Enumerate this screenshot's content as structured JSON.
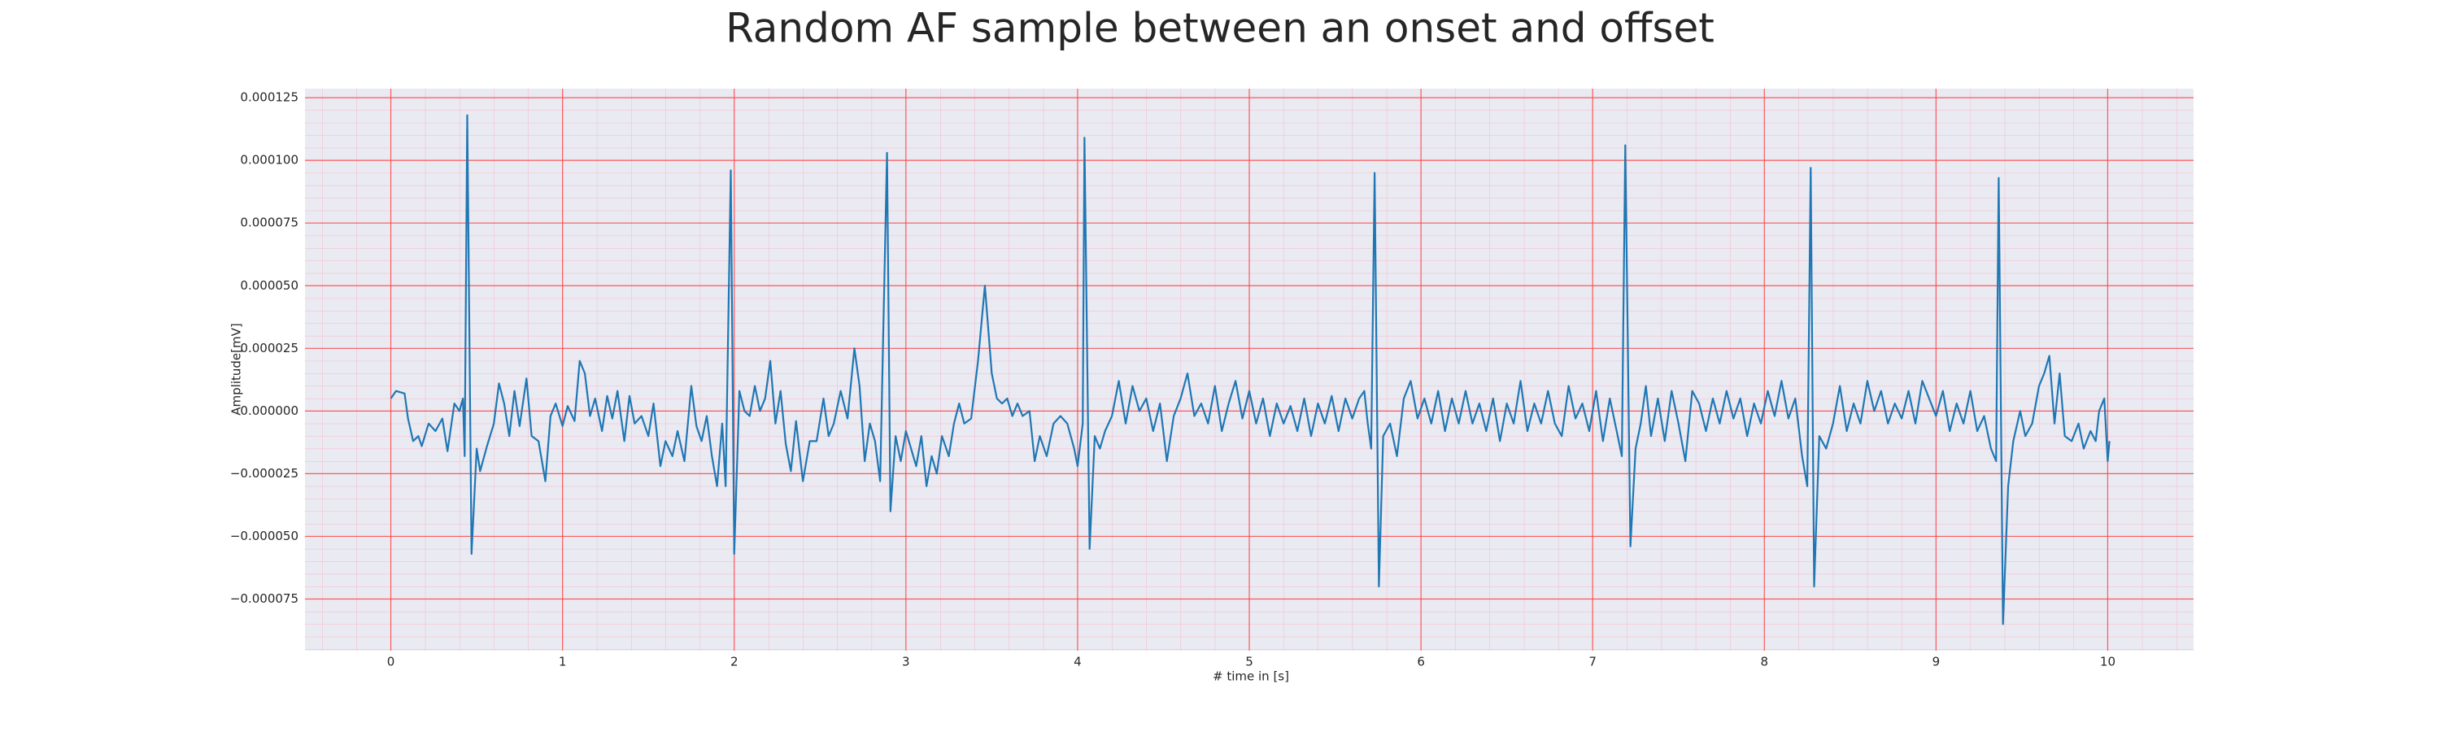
{
  "chart_data": {
    "type": "line",
    "title": "Random AF sample between an onset and offset",
    "xlabel": "# time in [s]",
    "ylabel": "Amplitude[mV]",
    "color": "#1f77b4",
    "grid": true,
    "minor_grid": true,
    "xlim": [
      -0.5,
      10.5
    ],
    "ylim": [
      -9.56e-05,
      0.0001286
    ],
    "xticks": [
      0,
      1,
      2,
      3,
      4,
      5,
      6,
      7,
      8,
      9,
      10
    ],
    "yticks": [
      {
        "value": -7.5e-05,
        "label": "−0.000075"
      },
      {
        "value": -5e-05,
        "label": "−0.000050"
      },
      {
        "value": -2.5e-05,
        "label": "−0.000025"
      },
      {
        "value": 0,
        "label": "0.000000"
      },
      {
        "value": 2.5e-05,
        "label": "0.000025"
      },
      {
        "value": 5e-05,
        "label": "0.000050"
      },
      {
        "value": 7.5e-05,
        "label": "0.000075"
      },
      {
        "value": 0.0001,
        "label": "0.000100"
      },
      {
        "value": 0.000125,
        "label": "0.000125"
      }
    ],
    "x": [
      0.0,
      0.03,
      0.08,
      0.1,
      0.13,
      0.16,
      0.18,
      0.22,
      0.26,
      0.3,
      0.33,
      0.37,
      0.4,
      0.42,
      0.43,
      0.445,
      0.47,
      0.5,
      0.52,
      0.56,
      0.6,
      0.63,
      0.66,
      0.69,
      0.72,
      0.75,
      0.79,
      0.82,
      0.86,
      0.9,
      0.93,
      0.96,
      1.0,
      1.03,
      1.07,
      1.1,
      1.13,
      1.16,
      1.19,
      1.23,
      1.26,
      1.29,
      1.32,
      1.36,
      1.39,
      1.42,
      1.46,
      1.5,
      1.53,
      1.57,
      1.6,
      1.64,
      1.67,
      1.71,
      1.75,
      1.78,
      1.81,
      1.84,
      1.87,
      1.9,
      1.93,
      1.95,
      1.98,
      2.0,
      2.03,
      2.06,
      2.09,
      2.12,
      2.15,
      2.18,
      2.21,
      2.24,
      2.27,
      2.3,
      2.33,
      2.36,
      2.4,
      2.44,
      2.48,
      2.52,
      2.55,
      2.58,
      2.62,
      2.66,
      2.7,
      2.73,
      2.76,
      2.79,
      2.82,
      2.85,
      2.89,
      2.91,
      2.94,
      2.97,
      3.0,
      3.03,
      3.06,
      3.09,
      3.12,
      3.15,
      3.18,
      3.21,
      3.25,
      3.28,
      3.31,
      3.34,
      3.38,
      3.42,
      3.46,
      3.5,
      3.53,
      3.56,
      3.59,
      3.62,
      3.65,
      3.68,
      3.72,
      3.75,
      3.78,
      3.82,
      3.86,
      3.9,
      3.94,
      3.98,
      4.0,
      4.03,
      4.04,
      4.07,
      4.1,
      4.13,
      4.16,
      4.2,
      4.24,
      4.28,
      4.32,
      4.36,
      4.4,
      4.44,
      4.48,
      4.52,
      4.56,
      4.6,
      4.64,
      4.68,
      4.72,
      4.76,
      4.8,
      4.84,
      4.88,
      4.92,
      4.96,
      5.0,
      5.04,
      5.08,
      5.12,
      5.16,
      5.2,
      5.24,
      5.28,
      5.32,
      5.36,
      5.4,
      5.44,
      5.48,
      5.52,
      5.56,
      5.6,
      5.64,
      5.67,
      5.69,
      5.71,
      5.73,
      5.755,
      5.78,
      5.82,
      5.86,
      5.9,
      5.94,
      5.98,
      6.02,
      6.06,
      6.1,
      6.14,
      6.18,
      6.22,
      6.26,
      6.3,
      6.34,
      6.38,
      6.42,
      6.46,
      6.5,
      6.54,
      6.58,
      6.62,
      6.66,
      6.7,
      6.74,
      6.78,
      6.82,
      6.86,
      6.9,
      6.94,
      6.98,
      7.02,
      7.06,
      7.1,
      7.14,
      7.17,
      7.19,
      7.22,
      7.25,
      7.28,
      7.31,
      7.34,
      7.38,
      7.42,
      7.46,
      7.5,
      7.54,
      7.58,
      7.62,
      7.66,
      7.7,
      7.74,
      7.78,
      7.82,
      7.86,
      7.9,
      7.94,
      7.98,
      8.02,
      8.06,
      8.1,
      8.14,
      8.18,
      8.22,
      8.25,
      8.27,
      8.29,
      8.32,
      8.36,
      8.4,
      8.44,
      8.48,
      8.52,
      8.56,
      8.6,
      8.64,
      8.68,
      8.72,
      8.76,
      8.8,
      8.84,
      8.88,
      8.92,
      8.96,
      9.0,
      9.04,
      9.08,
      9.12,
      9.16,
      9.2,
      9.24,
      9.28,
      9.32,
      9.35,
      9.365,
      9.39,
      9.42,
      9.45,
      9.49,
      9.52,
      9.56,
      9.6,
      9.63,
      9.66,
      9.69,
      9.72,
      9.75,
      9.79,
      9.83,
      9.86,
      9.9,
      9.93,
      9.95,
      9.98,
      10.0,
      10.01
    ],
    "values": [
      5e-06,
      8e-06,
      7e-06,
      -3e-06,
      -1.2e-05,
      -1e-05,
      -1.4e-05,
      -5e-06,
      -8e-06,
      -3e-06,
      -1.6e-05,
      3e-06,
      0,
      5e-06,
      -1.8e-05,
      0.000118,
      -5.7e-05,
      -1.5e-05,
      -2.4e-05,
      -1.4e-05,
      -5e-06,
      1.1e-05,
      3e-06,
      -1e-05,
      8e-06,
      -6e-06,
      1.3e-05,
      -1e-05,
      -1.2e-05,
      -2.8e-05,
      -2e-06,
      3e-06,
      -6e-06,
      2e-06,
      -4e-06,
      2e-05,
      1.5e-05,
      -2e-06,
      5e-06,
      -8e-06,
      6e-06,
      -3e-06,
      8e-06,
      -1.2e-05,
      6e-06,
      -5e-06,
      -2e-06,
      -1e-05,
      3e-06,
      -2.2e-05,
      -1.2e-05,
      -1.8e-05,
      -8e-06,
      -2e-05,
      1e-05,
      -6e-06,
      -1.2e-05,
      -2e-06,
      -1.8e-05,
      -3e-05,
      -5e-06,
      -3e-05,
      9.6e-05,
      -5.7e-05,
      8e-06,
      0,
      -2e-06,
      1e-05,
      0,
      5e-06,
      2e-05,
      -5e-06,
      8e-06,
      -1.3e-05,
      -2.4e-05,
      -4e-06,
      -2.8e-05,
      -1.2e-05,
      -1.2e-05,
      5e-06,
      -1e-05,
      -5e-06,
      8e-06,
      -3e-06,
      2.5e-05,
      1e-05,
      -2e-05,
      -5e-06,
      -1.2e-05,
      -2.8e-05,
      0.000103,
      -4e-05,
      -1e-05,
      -2e-05,
      -8e-06,
      -1.5e-05,
      -2.2e-05,
      -1e-05,
      -3e-05,
      -1.8e-05,
      -2.5e-05,
      -1e-05,
      -1.8e-05,
      -5e-06,
      3e-06,
      -5e-06,
      -3e-06,
      2e-05,
      5e-05,
      1.5e-05,
      5e-06,
      3e-06,
      5e-06,
      -2e-06,
      3e-06,
      -2e-06,
      0,
      -2e-05,
      -1e-05,
      -1.8e-05,
      -5e-06,
      -2e-06,
      -5e-06,
      -1.5e-05,
      -2.2e-05,
      -5e-06,
      0.000109,
      -5.5e-05,
      -1e-05,
      -1.5e-05,
      -8e-06,
      -2e-06,
      1.2e-05,
      -5e-06,
      1e-05,
      0,
      5e-06,
      -8e-06,
      3e-06,
      -2e-05,
      -2e-06,
      5e-06,
      1.5e-05,
      -2e-06,
      3e-06,
      -5e-06,
      1e-05,
      -8e-06,
      3e-06,
      1.2e-05,
      -3e-06,
      8e-06,
      -5e-06,
      5e-06,
      -1e-05,
      3e-06,
      -5e-06,
      2e-06,
      -8e-06,
      5e-06,
      -1e-05,
      3e-06,
      -5e-06,
      6e-06,
      -8e-06,
      5e-06,
      -3e-06,
      5e-06,
      8e-06,
      -5e-06,
      -1.5e-05,
      9.5e-05,
      -7e-05,
      -1e-05,
      -5e-06,
      -1.8e-05,
      5e-06,
      1.2e-05,
      -3e-06,
      5e-06,
      -5e-06,
      8e-06,
      -8e-06,
      5e-06,
      -5e-06,
      8e-06,
      -5e-06,
      3e-06,
      -8e-06,
      5e-06,
      -1.2e-05,
      3e-06,
      -5e-06,
      1.2e-05,
      -8e-06,
      3e-06,
      -5e-06,
      8e-06,
      -5e-06,
      -1e-05,
      1e-05,
      -3e-06,
      3e-06,
      -8e-06,
      8e-06,
      -1.2e-05,
      5e-06,
      -8e-06,
      -1.8e-05,
      0.000106,
      -5.4e-05,
      -1.5e-05,
      -5e-06,
      1e-05,
      -1e-05,
      5e-06,
      -1.2e-05,
      8e-06,
      -5e-06,
      -2e-05,
      8e-06,
      3e-06,
      -8e-06,
      5e-06,
      -5e-06,
      8e-06,
      -3e-06,
      5e-06,
      -1e-05,
      3e-06,
      -5e-06,
      8e-06,
      -2e-06,
      1.2e-05,
      -3e-06,
      5e-06,
      -1.8e-05,
      -3e-05,
      9.7e-05,
      -7e-05,
      -1e-05,
      -1.5e-05,
      -5e-06,
      1e-05,
      -8e-06,
      3e-06,
      -5e-06,
      1.2e-05,
      0,
      8e-06,
      -5e-06,
      3e-06,
      -3e-06,
      8e-06,
      -5e-06,
      1.2e-05,
      5e-06,
      -2e-06,
      8e-06,
      -8e-06,
      3e-06,
      -5e-06,
      8e-06,
      -8e-06,
      -2e-06,
      -1.5e-05,
      -2e-05,
      9.3e-05,
      -8.5e-05,
      -3e-05,
      -1.2e-05,
      0,
      -1e-05,
      -5e-06,
      1e-05,
      1.5e-05,
      2.2e-05,
      -5e-06,
      1.5e-05,
      -1e-05,
      -1.2e-05,
      -5e-06,
      -1.5e-05,
      -8e-06,
      -1.2e-05,
      0,
      5e-06,
      -2e-05,
      -1.2e-05
    ]
  }
}
